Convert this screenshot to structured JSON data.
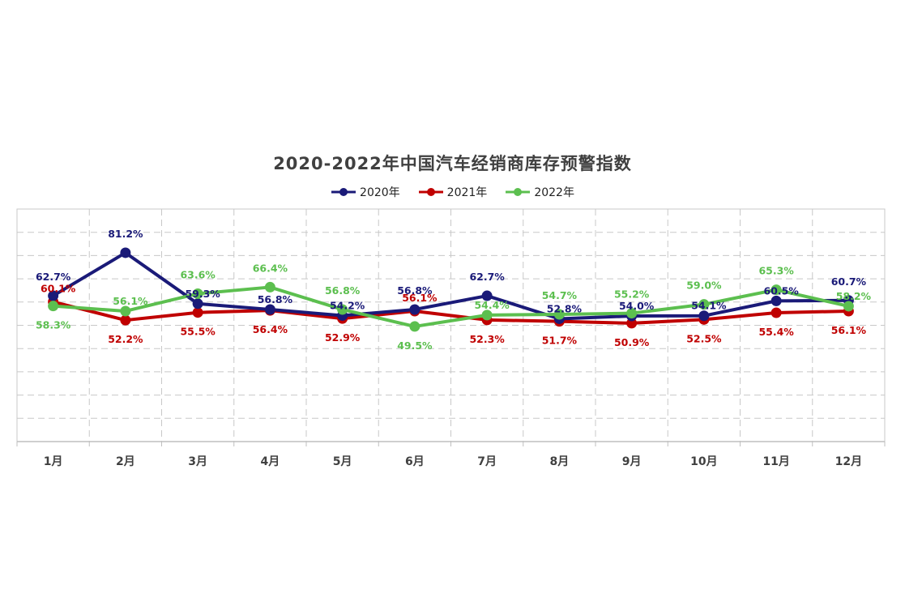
{
  "chart_data": {
    "type": "line",
    "title": "2020-2022年中国汽车经销商库存预警指数",
    "categories": [
      "1月",
      "2月",
      "3月",
      "4月",
      "5月",
      "6月",
      "7月",
      "8月",
      "9月",
      "10月",
      "11月",
      "12月"
    ],
    "series": [
      {
        "name": "2020年",
        "color": "#1a1a78",
        "values": [
          62.7,
          81.2,
          59.3,
          56.8,
          54.2,
          56.8,
          62.7,
          52.8,
          54.0,
          54.1,
          60.5,
          60.7
        ],
        "labels": [
          "62.7%",
          "81.2%",
          "59.3%",
          "56.8%",
          "54.2%",
          "56.8%",
          "62.7%",
          "52.8%",
          "54.0%",
          "54.1%",
          "60.5%",
          "60.7%"
        ]
      },
      {
        "name": "2021年",
        "color": "#c00000",
        "values": [
          60.1,
          52.2,
          55.5,
          56.4,
          52.9,
          56.1,
          52.3,
          51.7,
          50.9,
          52.5,
          55.4,
          56.1
        ],
        "labels": [
          "60.1%",
          "52.2%",
          "55.5%",
          "56.4%",
          "52.9%",
          "56.1%",
          "52.3%",
          "51.7%",
          "50.9%",
          "52.5%",
          "55.4%",
          "56.1%"
        ]
      },
      {
        "name": "2022年",
        "color": "#5cbf4f",
        "values": [
          58.3,
          56.1,
          63.6,
          66.4,
          56.8,
          49.5,
          54.4,
          54.7,
          55.2,
          59.0,
          65.3,
          58.2
        ],
        "labels": [
          "58.3%",
          "56.1%",
          "63.6%",
          "66.4%",
          "56.8%",
          "49.5%",
          "54.4%",
          "54.7%",
          "55.2%",
          "59.0%",
          "65.3%",
          "58.2%"
        ]
      }
    ],
    "ylim": [
      0,
      100
    ],
    "grid": true,
    "legend": "top-center"
  }
}
